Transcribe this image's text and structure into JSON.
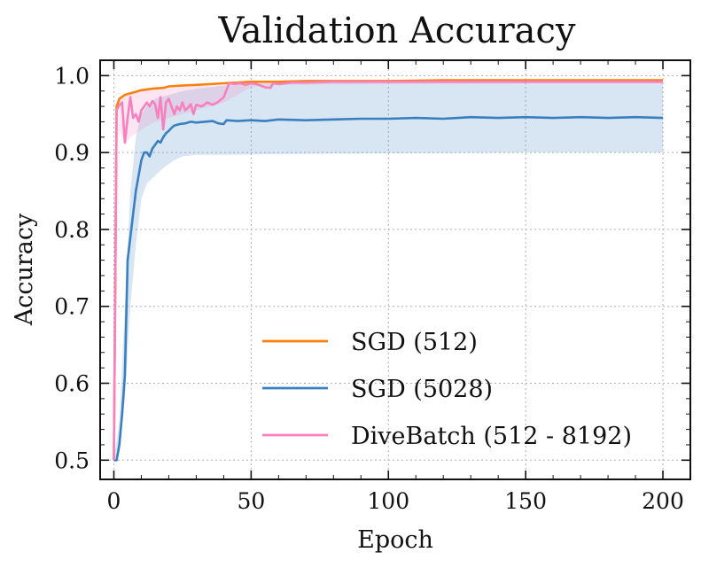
{
  "chart_data": {
    "type": "line",
    "title": "Validation Accuracy",
    "xlabel": "Epoch",
    "ylabel": "Accuracy",
    "xlim": [
      -5,
      210
    ],
    "ylim": [
      0.475,
      1.02
    ],
    "xticks": [
      0,
      50,
      100,
      150,
      200
    ],
    "yticks": [
      0.5,
      0.6,
      0.7,
      0.8,
      0.9,
      1.0
    ],
    "grid": true,
    "legend_position": "lower-right",
    "series": [
      {
        "name": "SGD (512)",
        "color": "#ff7f0e",
        "points": [
          [
            0,
            0.5
          ],
          [
            1,
            0.96
          ],
          [
            2,
            0.97
          ],
          [
            4,
            0.975
          ],
          [
            6,
            0.977
          ],
          [
            8,
            0.979
          ],
          [
            10,
            0.981
          ],
          [
            14,
            0.983
          ],
          [
            18,
            0.984
          ],
          [
            20,
            0.986
          ],
          [
            25,
            0.987
          ],
          [
            30,
            0.988
          ],
          [
            35,
            0.989
          ],
          [
            40,
            0.99
          ],
          [
            45,
            0.991
          ],
          [
            50,
            0.992
          ],
          [
            60,
            0.992
          ],
          [
            70,
            0.993
          ],
          [
            80,
            0.993
          ],
          [
            100,
            0.993
          ],
          [
            120,
            0.994
          ],
          [
            150,
            0.994
          ],
          [
            180,
            0.994
          ],
          [
            200,
            0.994
          ]
        ]
      },
      {
        "name": "SGD (5028)",
        "color": "#3a7fbf",
        "band_lower": [
          [
            0,
            0.5
          ],
          [
            2,
            0.51
          ],
          [
            4,
            0.58
          ],
          [
            6,
            0.7
          ],
          [
            8,
            0.78
          ],
          [
            10,
            0.84
          ],
          [
            12,
            0.86
          ],
          [
            15,
            0.87
          ],
          [
            18,
            0.88
          ],
          [
            20,
            0.885
          ],
          [
            22,
            0.89
          ],
          [
            25,
            0.895
          ],
          [
            30,
            0.897
          ],
          [
            40,
            0.897
          ],
          [
            60,
            0.898
          ],
          [
            100,
            0.899
          ],
          [
            150,
            0.9
          ],
          [
            200,
            0.9
          ]
        ],
        "band_upper": [
          [
            0,
            0.5
          ],
          [
            2,
            0.55
          ],
          [
            4,
            0.7
          ],
          [
            6,
            0.85
          ],
          [
            8,
            0.92
          ],
          [
            10,
            0.95
          ],
          [
            12,
            0.96
          ],
          [
            15,
            0.97
          ],
          [
            20,
            0.975
          ],
          [
            25,
            0.98
          ],
          [
            30,
            0.983
          ],
          [
            40,
            0.987
          ],
          [
            50,
            0.989
          ],
          [
            60,
            0.99
          ],
          [
            100,
            0.991
          ],
          [
            150,
            0.992
          ],
          [
            200,
            0.992
          ]
        ],
        "points": [
          [
            0,
            0.5
          ],
          [
            1,
            0.5
          ],
          [
            2,
            0.52
          ],
          [
            3,
            0.56
          ],
          [
            4,
            0.61
          ],
          [
            5,
            0.76
          ],
          [
            6,
            0.79
          ],
          [
            7,
            0.82
          ],
          [
            8,
            0.85
          ],
          [
            9,
            0.87
          ],
          [
            10,
            0.89
          ],
          [
            11,
            0.9
          ],
          [
            12,
            0.9
          ],
          [
            13,
            0.895
          ],
          [
            14,
            0.905
          ],
          [
            15,
            0.91
          ],
          [
            16,
            0.915
          ],
          [
            17,
            0.913
          ],
          [
            18,
            0.92
          ],
          [
            19,
            0.925
          ],
          [
            20,
            0.928
          ],
          [
            21,
            0.932
          ],
          [
            22,
            0.935
          ],
          [
            24,
            0.937
          ],
          [
            26,
            0.938
          ],
          [
            28,
            0.94
          ],
          [
            30,
            0.939
          ],
          [
            33,
            0.94
          ],
          [
            36,
            0.941
          ],
          [
            38,
            0.938
          ],
          [
            40,
            0.937
          ],
          [
            41,
            0.942
          ],
          [
            45,
            0.941
          ],
          [
            50,
            0.942
          ],
          [
            55,
            0.941
          ],
          [
            60,
            0.943
          ],
          [
            70,
            0.942
          ],
          [
            80,
            0.943
          ],
          [
            90,
            0.944
          ],
          [
            100,
            0.944
          ],
          [
            110,
            0.945
          ],
          [
            120,
            0.944
          ],
          [
            130,
            0.946
          ],
          [
            140,
            0.945
          ],
          [
            150,
            0.946
          ],
          [
            160,
            0.945
          ],
          [
            170,
            0.946
          ],
          [
            180,
            0.945
          ],
          [
            190,
            0.946
          ],
          [
            200,
            0.945
          ]
        ]
      },
      {
        "name": "DiveBatch (512 - 8192)",
        "color": "#f781bf",
        "band_lower": [
          [
            0,
            0.5
          ],
          [
            2,
            0.93
          ],
          [
            4,
            0.91
          ],
          [
            6,
            0.92
          ],
          [
            8,
            0.925
          ],
          [
            10,
            0.93
          ],
          [
            15,
            0.94
          ],
          [
            20,
            0.945
          ],
          [
            25,
            0.95
          ],
          [
            30,
            0.955
          ],
          [
            35,
            0.96
          ],
          [
            40,
            0.965
          ],
          [
            45,
            0.975
          ],
          [
            50,
            0.985
          ],
          [
            55,
            0.987
          ],
          [
            60,
            0.988
          ],
          [
            100,
            0.989
          ],
          [
            150,
            0.99
          ],
          [
            200,
            0.99
          ]
        ],
        "band_upper": [
          [
            0,
            0.5
          ],
          [
            2,
            0.97
          ],
          [
            4,
            0.975
          ],
          [
            6,
            0.978
          ],
          [
            10,
            0.98
          ],
          [
            15,
            0.982
          ],
          [
            20,
            0.984
          ],
          [
            25,
            0.985
          ],
          [
            30,
            0.986
          ],
          [
            35,
            0.987
          ],
          [
            40,
            0.988
          ],
          [
            50,
            0.99
          ],
          [
            60,
            0.991
          ],
          [
            100,
            0.993
          ],
          [
            150,
            0.993
          ],
          [
            200,
            0.993
          ]
        ],
        "points": [
          [
            0,
            0.5
          ],
          [
            1,
            0.955
          ],
          [
            2,
            0.962
          ],
          [
            3,
            0.965
          ],
          [
            4,
            0.913
          ],
          [
            5,
            0.945
          ],
          [
            6,
            0.972
          ],
          [
            7,
            0.945
          ],
          [
            8,
            0.95
          ],
          [
            9,
            0.94
          ],
          [
            10,
            0.955
          ],
          [
            11,
            0.96
          ],
          [
            12,
            0.965
          ],
          [
            13,
            0.96
          ],
          [
            14,
            0.967
          ],
          [
            15,
            0.963
          ],
          [
            16,
            0.945
          ],
          [
            17,
            0.972
          ],
          [
            18,
            0.93
          ],
          [
            19,
            0.965
          ],
          [
            20,
            0.97
          ],
          [
            21,
            0.96
          ],
          [
            22,
            0.95
          ],
          [
            23,
            0.96
          ],
          [
            24,
            0.955
          ],
          [
            25,
            0.965
          ],
          [
            26,
            0.955
          ],
          [
            27,
            0.958
          ],
          [
            28,
            0.963
          ],
          [
            29,
            0.95
          ],
          [
            30,
            0.962
          ],
          [
            32,
            0.96
          ],
          [
            34,
            0.965
          ],
          [
            36,
            0.962
          ],
          [
            38,
            0.966
          ],
          [
            40,
            0.972
          ],
          [
            42,
            0.99
          ],
          [
            44,
            0.989
          ],
          [
            46,
            0.99
          ],
          [
            48,
            0.988
          ],
          [
            50,
            0.99
          ],
          [
            52,
            0.989
          ],
          [
            55,
            0.985
          ],
          [
            57,
            0.984
          ],
          [
            58,
            0.99
          ],
          [
            60,
            0.989
          ],
          [
            65,
            0.991
          ],
          [
            70,
            0.991
          ],
          [
            80,
            0.992
          ],
          [
            90,
            0.992
          ],
          [
            100,
            0.992
          ],
          [
            120,
            0.992
          ],
          [
            150,
            0.992
          ],
          [
            180,
            0.992
          ],
          [
            200,
            0.992
          ]
        ]
      }
    ]
  }
}
